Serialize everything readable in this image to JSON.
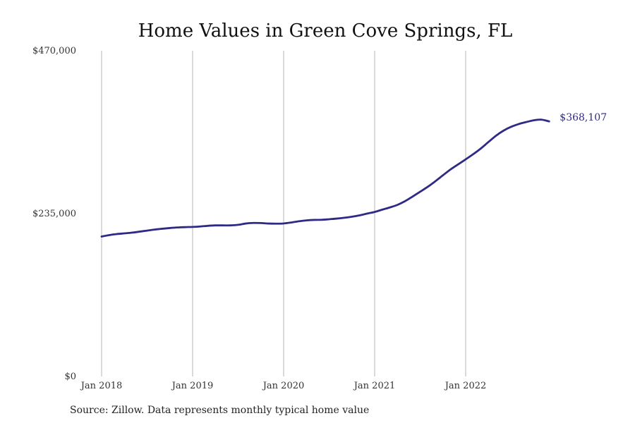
{
  "chart_data": {
    "type": "line",
    "title": "Home Values in Green Cove Springs, FL",
    "xlabel": "",
    "ylabel": "",
    "x_ticks": [
      "Jan 2018",
      "Jan 2019",
      "Jan 2020",
      "Jan 2021",
      "Jan 2022"
    ],
    "x_range": [
      "2018-01",
      "2022-12"
    ],
    "y_ticks": [
      "$0",
      "$235,000",
      "$470,000"
    ],
    "y_tick_values": [
      0,
      235000,
      470000
    ],
    "ylim": [
      0,
      470000
    ],
    "grid": "vertical lines at x tick positions",
    "legend": "none",
    "line_color": "#2e2a85",
    "series": [
      {
        "x": [
          "2018-01",
          "2018-02",
          "2018-03",
          "2018-04",
          "2018-05",
          "2018-06",
          "2018-07",
          "2018-08",
          "2018-09",
          "2018-10",
          "2018-11",
          "2018-12",
          "2019-01",
          "2019-02",
          "2019-03",
          "2019-04",
          "2019-05",
          "2019-06",
          "2019-07",
          "2019-08",
          "2019-09",
          "2019-10",
          "2019-11",
          "2019-12",
          "2020-01",
          "2020-02",
          "2020-03",
          "2020-04",
          "2020-05",
          "2020-06",
          "2020-07",
          "2020-08",
          "2020-09",
          "2020-10",
          "2020-11",
          "2020-12",
          "2021-01",
          "2021-02",
          "2021-03",
          "2021-04",
          "2021-05",
          "2021-06",
          "2021-07",
          "2021-08",
          "2021-09",
          "2021-10",
          "2021-11",
          "2021-12",
          "2022-01",
          "2022-02",
          "2022-03",
          "2022-04",
          "2022-05",
          "2022-06",
          "2022-07",
          "2022-08",
          "2022-09",
          "2022-10",
          "2022-11",
          "2022-12"
        ],
        "values": [
          202000,
          204000,
          205500,
          206500,
          207500,
          209000,
          210500,
          212000,
          213200,
          214200,
          215000,
          215500,
          215800,
          216400,
          217400,
          218000,
          218000,
          218000,
          218800,
          220700,
          221500,
          221400,
          220700,
          220500,
          220800,
          222200,
          223900,
          225200,
          225900,
          226100,
          226900,
          227800,
          229000,
          230500,
          232500,
          235000,
          237400,
          240700,
          243900,
          247600,
          252900,
          259600,
          266600,
          273700,
          281700,
          290300,
          298700,
          306000,
          313300,
          320800,
          329000,
          338300,
          347400,
          354800,
          360300,
          364300,
          367200,
          369700,
          370600,
          368107
        ]
      }
    ],
    "end_label": "$368,107"
  },
  "footer": {
    "source": "Source: Zillow. Data represents monthly typical home value"
  }
}
